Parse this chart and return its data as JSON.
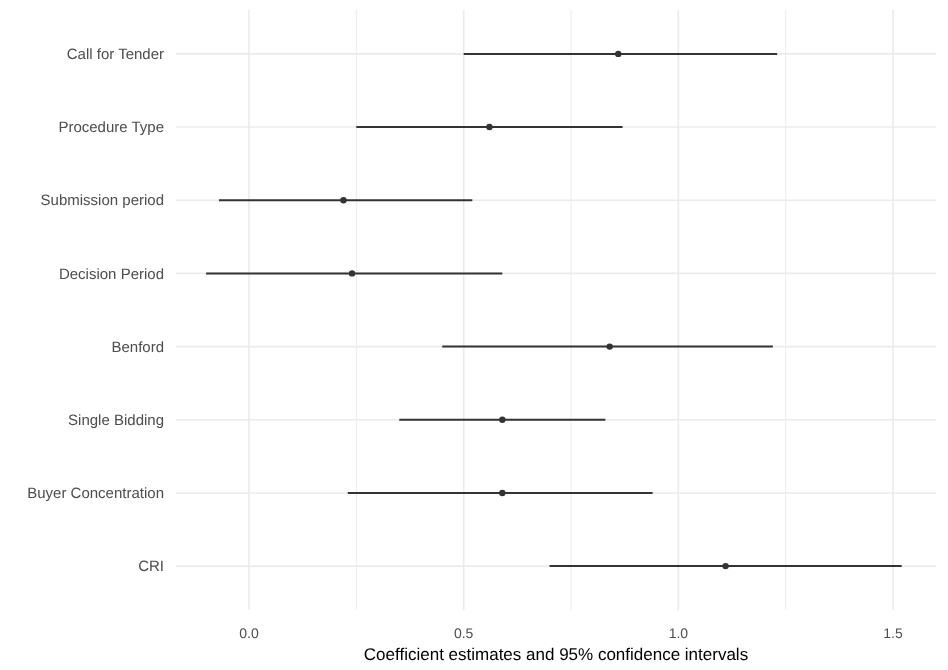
{
  "chart_data": {
    "type": "scatter",
    "orientation": "horizontal",
    "xlabel": "Coefficient estimates and 95% confidence intervals",
    "categories": [
      "Call for Tender",
      "Procedure Type",
      "Submission period",
      "Decision Period",
      "Benford",
      "Single Bidding",
      "Buyer Concentration",
      "CRI"
    ],
    "values": [
      0.86,
      0.56,
      0.22,
      0.24,
      0.84,
      0.59,
      0.59,
      1.11
    ],
    "errors": [
      [
        0.5,
        1.23
      ],
      [
        0.25,
        0.87
      ],
      [
        -0.07,
        0.52
      ],
      [
        -0.1,
        0.59
      ],
      [
        0.45,
        1.22
      ],
      [
        0.35,
        0.83
      ],
      [
        0.23,
        0.94
      ],
      [
        0.7,
        1.52
      ]
    ],
    "color": "#333333",
    "xlim": [
      -0.17,
      1.6
    ],
    "xticks": [
      {
        "value": 0.0,
        "label": "0.0"
      },
      {
        "value": 0.25,
        "label": null
      },
      {
        "value": 0.5,
        "label": "0.5"
      },
      {
        "value": 0.75,
        "label": null
      },
      {
        "value": 1.0,
        "label": "1.0"
      },
      {
        "value": 1.25,
        "label": null
      },
      {
        "value": 1.5,
        "label": "1.5"
      }
    ],
    "grid": true,
    "marker": "circle"
  }
}
